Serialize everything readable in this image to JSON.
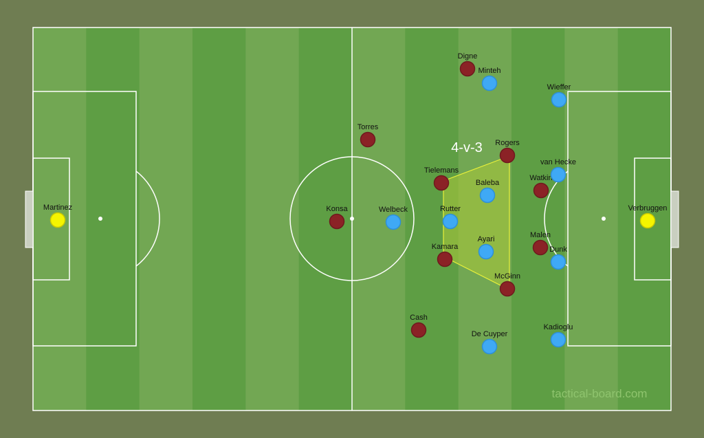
{
  "board": {
    "colors": {
      "background": "#6f7d52",
      "stripe_light": "#72a753",
      "stripe_dark": "#5e9e44",
      "red_team": "#8b2226",
      "blue_team": "#3fa9f5",
      "goalkeeper": "#f5f500",
      "zone_fill": "#a6c43a"
    },
    "annotation": "4-v-3",
    "watermark": "tactical-board.com"
  },
  "players": {
    "red": [
      "Digne",
      "Torres",
      "Rogers",
      "Tielemans",
      "Konsa",
      "Kamara",
      "McGinn",
      "Cash",
      "Watkin",
      "Malen"
    ],
    "blue": [
      "Minteh",
      "Wieffer",
      "Baleba",
      "van Hecke",
      "Rutter",
      "Welbeck",
      "Ayari",
      "Dunk",
      "Kadioglu",
      "De Cuyper"
    ],
    "goalkeepers": [
      "Martinez",
      "Verbruggen"
    ]
  }
}
